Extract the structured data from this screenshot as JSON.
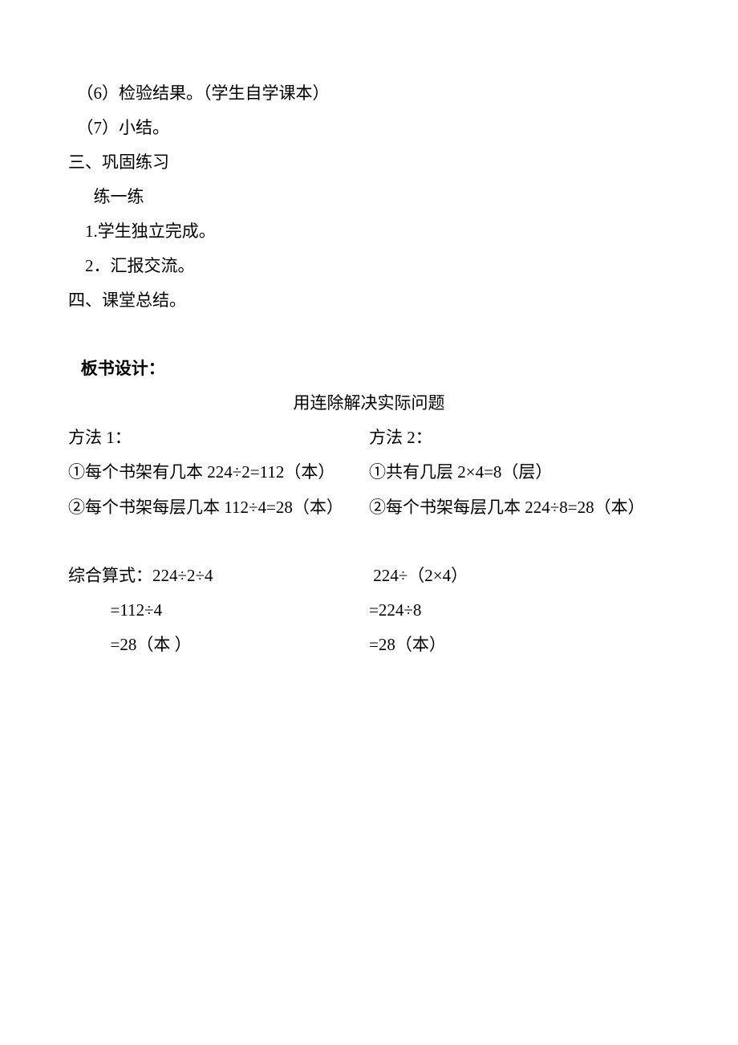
{
  "text_color": "#000000",
  "background_color": "#ffffff",
  "font_family": "SimSun",
  "font_size_pt": 16,
  "line_height": 2.05,
  "lines": {
    "l1": "  （6）检验结果。（学生自学课本）",
    "l2": "  （7）小结。",
    "l3": "三、巩固练习",
    "l4": "      练一练",
    "l5": "    1.学生独立完成。",
    "l6": "    2．汇报交流。",
    "l7": "四、课堂总结。"
  },
  "board_design_label": "   板书设计：",
  "board_title": "用连除解决实际问题",
  "methods": {
    "left": {
      "title": "方法 1：",
      "step1": "①每个书架有几本 224÷2=112（本）",
      "step2": "②每个书架每层几本 112÷4=28（本）"
    },
    "right": {
      "title": "方法 2：",
      "step1": "①共有几层 2×4=8（层）",
      "step2": "②每个书架每层几本 224÷8=28（本）"
    }
  },
  "combined": {
    "left": {
      "label": "综合算式：224÷2÷4",
      "step1": "          =112÷4",
      "step2": "          =28（本 ）"
    },
    "right": {
      "expr": " 224÷（2×4）",
      "step1": "=224÷8",
      "step2": "=28（本）"
    }
  }
}
